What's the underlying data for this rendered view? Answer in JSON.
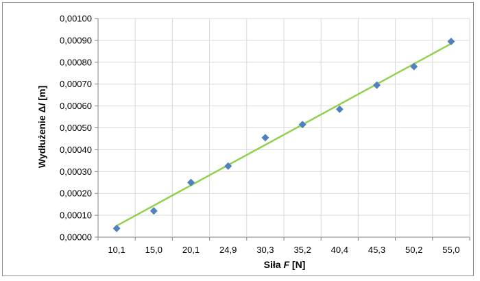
{
  "chart_data": {
    "type": "scatter",
    "xlabel_parts": [
      "Siła ",
      "F",
      " [N]"
    ],
    "ylabel_parts": [
      "Wydłużenie Δ",
      "l",
      " [m]"
    ],
    "categories": [
      "10,1",
      "15,0",
      "20,1",
      "24,9",
      "30,3",
      "35,2",
      "40,4",
      "45,3",
      "50,2",
      "55,0"
    ],
    "values": [
      4e-05,
      0.00012,
      0.00025,
      0.000325,
      0.000455,
      0.000515,
      0.000585,
      0.000695,
      0.00078,
      0.000895
    ],
    "yticks": [
      "0,00000",
      "0,00010",
      "0,00020",
      "0,00030",
      "0,00040",
      "0,00050",
      "0,00060",
      "0,00070",
      "0,00080",
      "0,00090",
      "0,00100"
    ],
    "ylim": [
      0,
      0.001
    ],
    "trendline": {
      "type": "linear",
      "start": 5.2e-05,
      "end": 0.000885
    },
    "grid": true,
    "colors": {
      "marker": "#4f81bd",
      "trendline": "#92d050",
      "grid": "#d9d9d9"
    }
  }
}
